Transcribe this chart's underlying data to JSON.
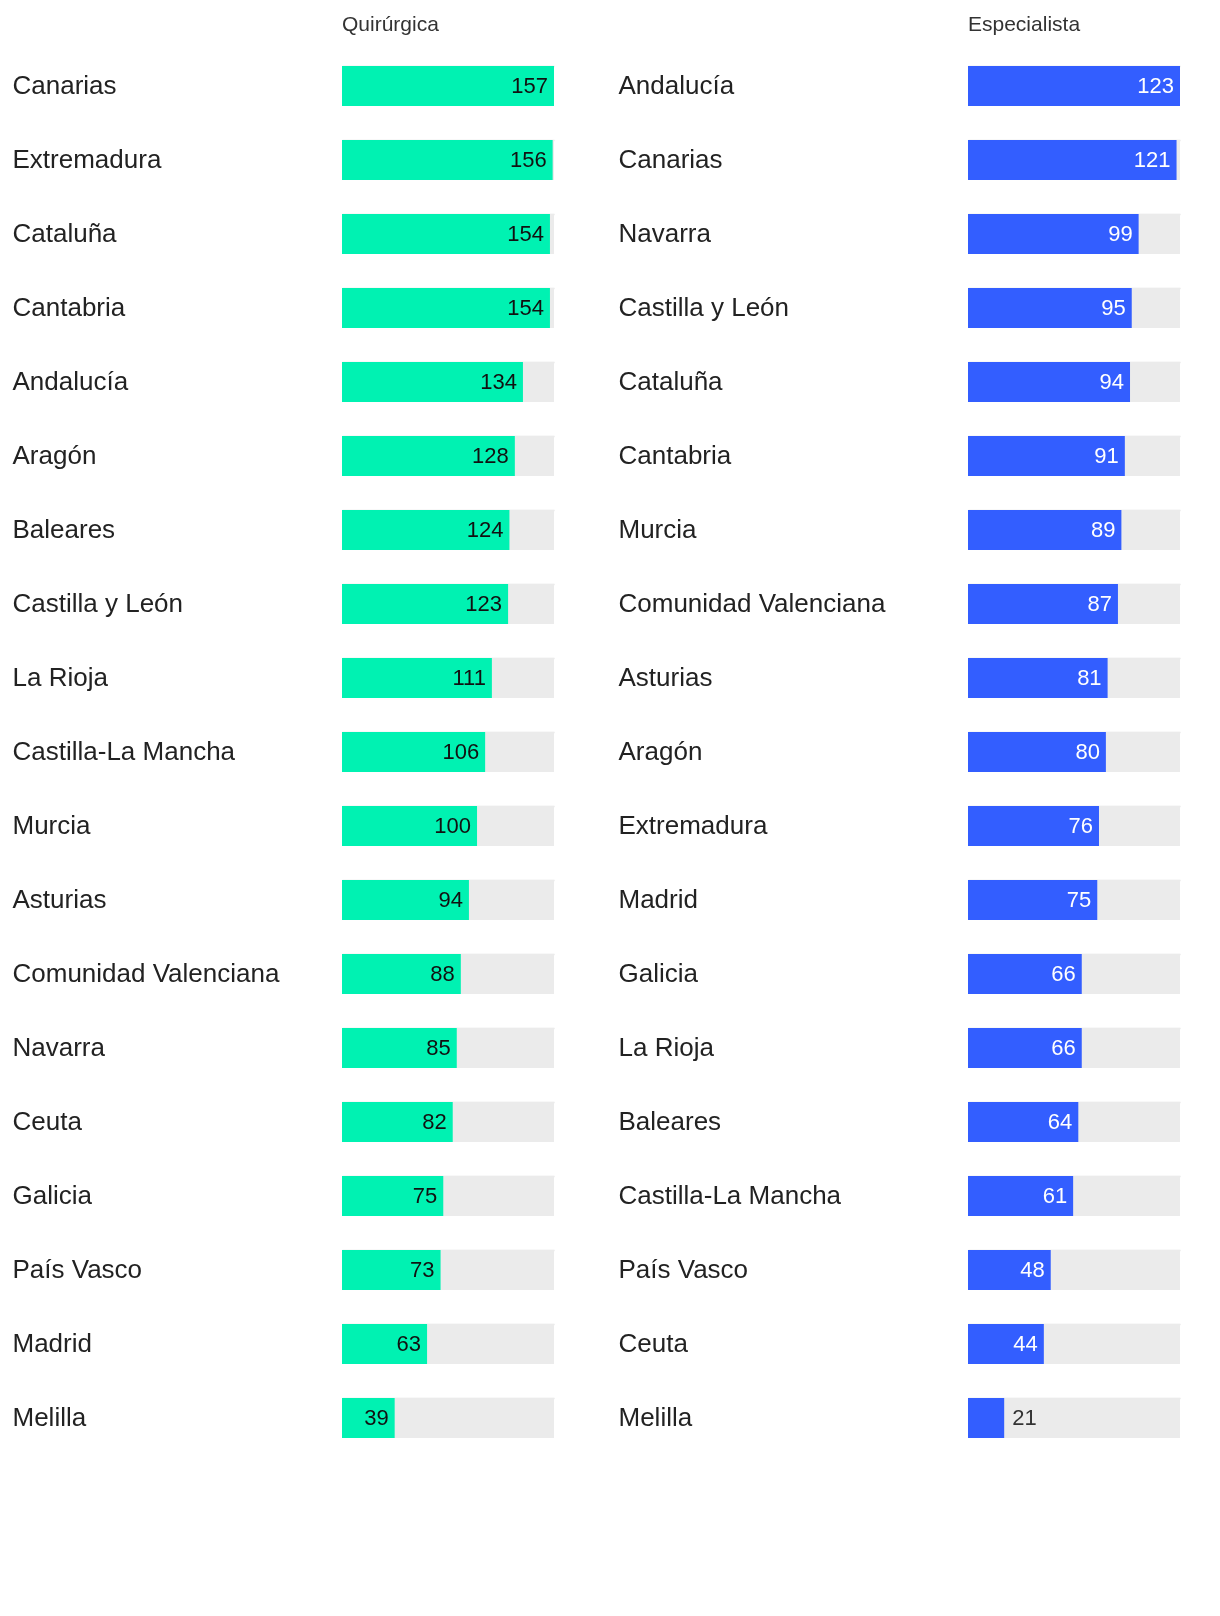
{
  "chart_data": [
    {
      "type": "bar",
      "orientation": "horizontal",
      "xlabel": "Quirúrgica",
      "color": "#00f2b2",
      "data_labels": true,
      "grid": "y",
      "categories": [
        "Canarias",
        "Extremadura",
        "Cataluña",
        "Cantabria",
        "Andalucía",
        "Aragón",
        "Baleares",
        "Castilla y León",
        "La Rioja",
        "Castilla-La Mancha",
        "Murcia",
        "Asturias",
        "Comunidad Valenciana",
        "Navarra",
        "Ceuta",
        "Galicia",
        "País Vasco",
        "Madrid",
        "Melilla"
      ],
      "values": [
        157,
        156,
        154,
        154,
        134,
        128,
        124,
        123,
        111,
        106,
        100,
        94,
        88,
        85,
        82,
        75,
        73,
        63,
        39
      ]
    },
    {
      "type": "bar",
      "orientation": "horizontal",
      "xlabel": "Especialista",
      "color": "#335eff",
      "data_labels": true,
      "grid": "y",
      "categories": [
        "Andalucía",
        "Canarias",
        "Navarra",
        "Castilla y León",
        "Cataluña",
        "Cantabria",
        "Murcia",
        "Comunidad Valenciana",
        "Asturias",
        "Aragón",
        "Extremadura",
        "Madrid",
        "Galicia",
        "La Rioja",
        "Baleares",
        "Castilla-La Mancha",
        "País Vasco",
        "Ceuta",
        "Melilla"
      ],
      "values": [
        123,
        121,
        99,
        95,
        94,
        91,
        89,
        87,
        81,
        80,
        76,
        75,
        66,
        66,
        64,
        61,
        48,
        44,
        21
      ]
    }
  ]
}
